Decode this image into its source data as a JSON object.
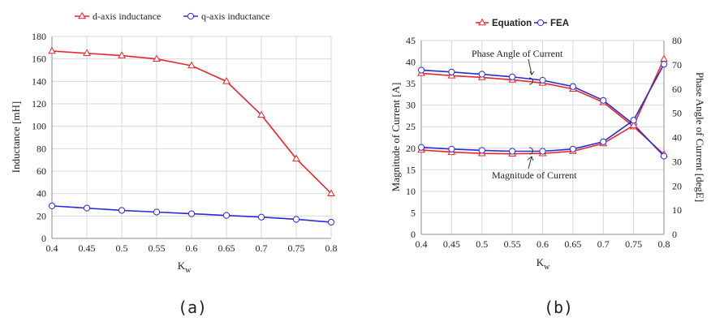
{
  "chart_data": [
    {
      "type": "line",
      "caption": "(a)",
      "x": [
        0.4,
        0.45,
        0.5,
        0.55,
        0.6,
        0.65,
        0.7,
        0.75,
        0.8
      ],
      "xtick_labels": [
        "0.4",
        "0.45",
        "0.5",
        "0.55",
        "0.6",
        "0.65",
        "0.7",
        "0.75",
        "0.8"
      ],
      "xlabel_main": "K",
      "xlabel_sub": "w",
      "ylabel": "Inductance [mH]",
      "ylim": [
        0,
        180
      ],
      "yticks": [
        0,
        20,
        40,
        60,
        80,
        100,
        120,
        140,
        160,
        180
      ],
      "grid": true,
      "legend_position": "top",
      "series": [
        {
          "name": "d-axis inductance",
          "color": "#e8262a",
          "marker": "triangle",
          "values": [
            167,
            165,
            163,
            160,
            154,
            140,
            110,
            71,
            40
          ]
        },
        {
          "name": "q-axis inductance",
          "color": "#2a2ad6",
          "marker": "circle",
          "values": [
            29,
            27,
            25,
            23.5,
            22,
            20.5,
            19,
            17,
            14.5
          ]
        }
      ]
    },
    {
      "type": "line",
      "caption": "(b)",
      "x": [
        0.4,
        0.45,
        0.5,
        0.55,
        0.6,
        0.65,
        0.7,
        0.75,
        0.8
      ],
      "xtick_labels": [
        "0.4",
        "0.45",
        "0.5",
        "0.55",
        "0.6",
        "0.65",
        "0.7",
        "0.75",
        "0.8"
      ],
      "xlabel_main": "K",
      "xlabel_sub": "w",
      "ylabel": "Magnitude of Current [A]",
      "y2label": "Phase Angle of Current [degE]",
      "ylim": [
        0,
        45
      ],
      "yticks": [
        0,
        5,
        10,
        15,
        20,
        25,
        30,
        35,
        40,
        45
      ],
      "y2lim": [
        0,
        80
      ],
      "y2ticks": [
        0,
        10,
        20,
        30,
        40,
        50,
        60,
        70,
        80
      ],
      "grid": true,
      "legend_position": "top",
      "legend": [
        {
          "name": "Equation",
          "color": "#e8262a",
          "marker": "triangle"
        },
        {
          "name": "FEA",
          "color": "#2a2ad6",
          "marker": "circle"
        }
      ],
      "annotations": [
        "Phase Angle of Current",
        "Magnitude of Current"
      ],
      "series": [
        {
          "name": "Equation",
          "group": "Phase Angle of Current",
          "axis": "right",
          "color": "#e8262a",
          "marker": "triangle",
          "values": [
            66.5,
            65.5,
            64.8,
            63.8,
            62.5,
            60,
            54.5,
            44.5,
            33
          ]
        },
        {
          "name": "FEA",
          "group": "Phase Angle of Current",
          "axis": "right",
          "color": "#2a2ad6",
          "marker": "circle",
          "values": [
            67.8,
            67,
            66.1,
            65,
            63.6,
            61,
            55.3,
            45.4,
            32.3
          ]
        },
        {
          "name": "Equation",
          "group": "Magnitude of Current",
          "axis": "left",
          "color": "#e8262a",
          "marker": "triangle",
          "values": [
            19.6,
            19.1,
            18.8,
            18.7,
            18.8,
            19.3,
            21.1,
            25.3,
            40.7
          ]
        },
        {
          "name": "FEA",
          "group": "Magnitude of Current",
          "axis": "left",
          "color": "#2a2ad6",
          "marker": "circle",
          "values": [
            20.2,
            19.8,
            19.5,
            19.3,
            19.3,
            19.8,
            21.5,
            26.5,
            39.5
          ]
        }
      ]
    }
  ]
}
